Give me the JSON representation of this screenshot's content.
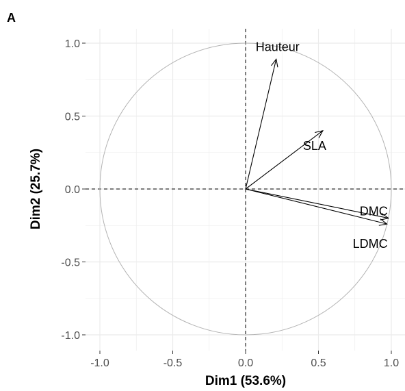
{
  "panel_label": "A",
  "chart_data": {
    "type": "scatter",
    "subtype": "pca-correlation-circle",
    "xlabel": "Dim1 (53.6%)",
    "ylabel": "Dim2 (25.7%)",
    "xlim": [
      -1.0,
      1.0
    ],
    "ylim": [
      -1.0,
      1.0
    ],
    "x_ticks": [
      "-1.0",
      "-0.5",
      "0.0",
      "0.5",
      "1.0"
    ],
    "y_ticks": [
      "1.0",
      "0.5",
      "0.0",
      "-0.5",
      "-1.0"
    ],
    "x_tick_values": [
      -1.0,
      -0.5,
      0.0,
      0.5,
      1.0
    ],
    "y_tick_values": [
      1.0,
      0.5,
      0.0,
      -0.5,
      -1.0
    ],
    "grid": true,
    "unit_circle": true,
    "reference_lines": "dashed lines at x = 0 and y = 0",
    "colors": {
      "grid": "#ebebeb",
      "circle": "#b3b3b3",
      "arrow": "#000000",
      "text": "#000000"
    },
    "vectors": [
      {
        "name": "Hauteur",
        "x": 0.21,
        "y": 0.89
      },
      {
        "name": "SLA",
        "x": 0.53,
        "y": 0.4
      },
      {
        "name": "DMC",
        "x": 0.98,
        "y": -0.2
      },
      {
        "name": "LDMC",
        "x": 0.97,
        "y": -0.24
      }
    ]
  }
}
